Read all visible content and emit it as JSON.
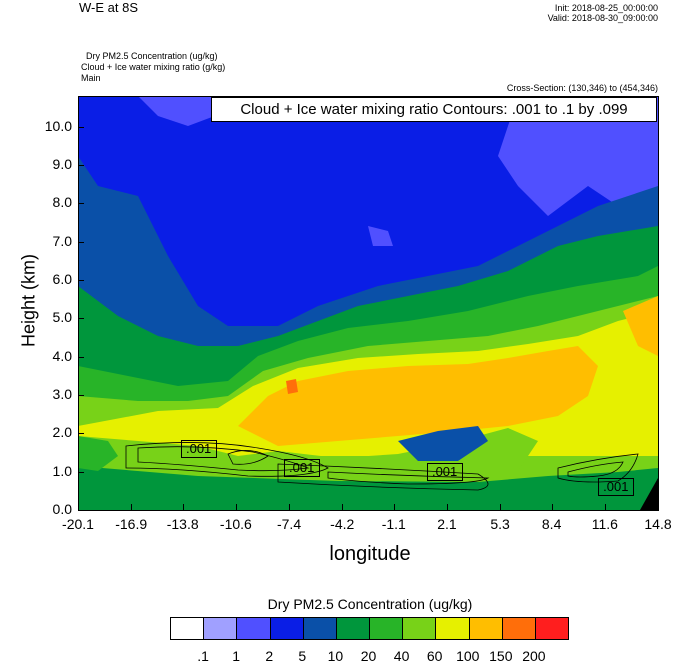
{
  "header": {
    "title": "W-E at 8S",
    "init": "Init: 2018-08-25_00:00:00",
    "valid": "Valid: 2018-08-30_09:00:00",
    "field1": "Dry PM2.5 Concentration   (ug/kg)",
    "field2": "Cloud + Ice water mixing ratio   (g/kg)",
    "field3": "Main",
    "cross_section": "Cross-Section: (130,346) to (454,346)"
  },
  "contour_label": "Cloud + Ice water mixing ratio Contours: .001 to .1 by .099",
  "chart_data": {
    "type": "heatmap",
    "xlabel": "longitude",
    "ylabel": "Height (km)",
    "x_ticks": [
      "-20.1",
      "-16.9",
      "-13.8",
      "-10.6",
      "-7.4",
      "-4.2",
      "-1.1",
      "2.1",
      "5.3",
      "8.4",
      "11.6",
      "14.8"
    ],
    "y_ticks": [
      "0.0",
      "1.0",
      "2.0",
      "3.0",
      "4.0",
      "5.0",
      "6.0",
      "7.0",
      "8.0",
      "9.0",
      "10.0"
    ],
    "xlim": [
      -20.1,
      14.8
    ],
    "ylim": [
      0,
      10.8
    ],
    "colorbar": {
      "title": "Dry PM2.5 Concentration  (ug/kg)",
      "levels": [
        ".1",
        "1",
        "2",
        "5",
        "10",
        "20",
        "40",
        "60",
        "100",
        "150",
        "200"
      ],
      "colors": [
        "#ffffff",
        "#a0a0ff",
        "#5050ff",
        "#0a1ee6",
        "#0a50a8",
        "#00963c",
        "#28b428",
        "#78d218",
        "#e6f000",
        "#ffbe00",
        "#ff6e0a",
        "#ff1e1e"
      ]
    },
    "contour_labels": [
      {
        "text": ".001",
        "lon": -12.9,
        "height": 1.6
      },
      {
        "text": ".001",
        "lon": -6.7,
        "height": 1.1
      },
      {
        "text": ".001",
        "lon": 1.9,
        "height": 1.0
      },
      {
        "text": ".001",
        "lon": 12.2,
        "height": 0.6
      }
    ]
  }
}
